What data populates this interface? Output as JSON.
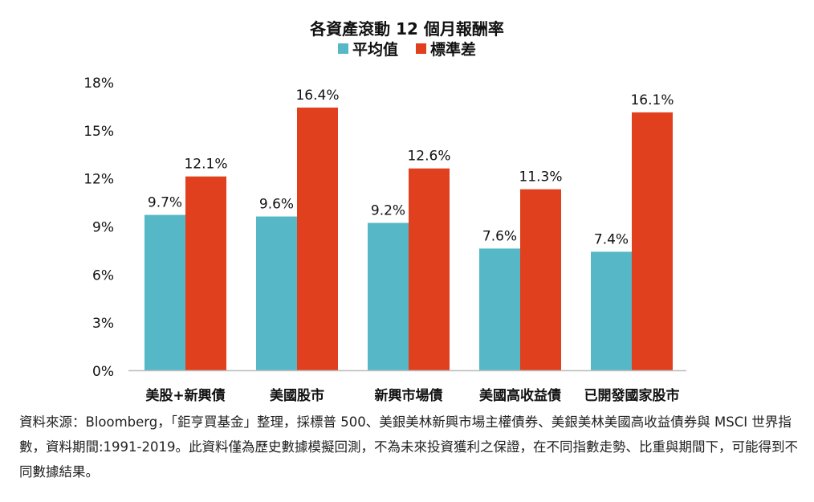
{
  "chart_data": {
    "type": "bar",
    "title": "各資產滾動 12 個月報酬率",
    "categories": [
      "美股+新興債",
      "美國股市",
      "新興市場債",
      "美國高收益債",
      "已開發國家股市"
    ],
    "series": [
      {
        "name": "平均值",
        "values": [
          9.7,
          9.6,
          9.2,
          7.6,
          7.4
        ],
        "labels": [
          "9.7%",
          "9.6%",
          "9.2%",
          "7.6%",
          "7.4%"
        ],
        "color": "#56B7C7"
      },
      {
        "name": "標準差",
        "values": [
          12.1,
          16.4,
          12.6,
          11.3,
          16.1
        ],
        "labels": [
          "12.1%",
          "16.4%",
          "12.6%",
          "11.3%",
          "16.1%"
        ],
        "color": "#E0401E"
      }
    ],
    "yticks": [
      "0%",
      "3%",
      "6%",
      "9%",
      "12%",
      "15%",
      "18%"
    ],
    "ylim": [
      0,
      18
    ],
    "grid": false,
    "legend_position": "top-center"
  },
  "footnote": "資料來源：Bloomberg，「鉅亨買基金」整理，採標普 500、美銀美林新興市場主權債券、美銀美林美國高收益債券與 MSCI 世界指數，資料期間:1991-2019。此資料僅為歷史數據模擬回測，不為未來投資獲利之保證，在不同指數走勢、比重與期間下，可能得到不同數據結果。"
}
